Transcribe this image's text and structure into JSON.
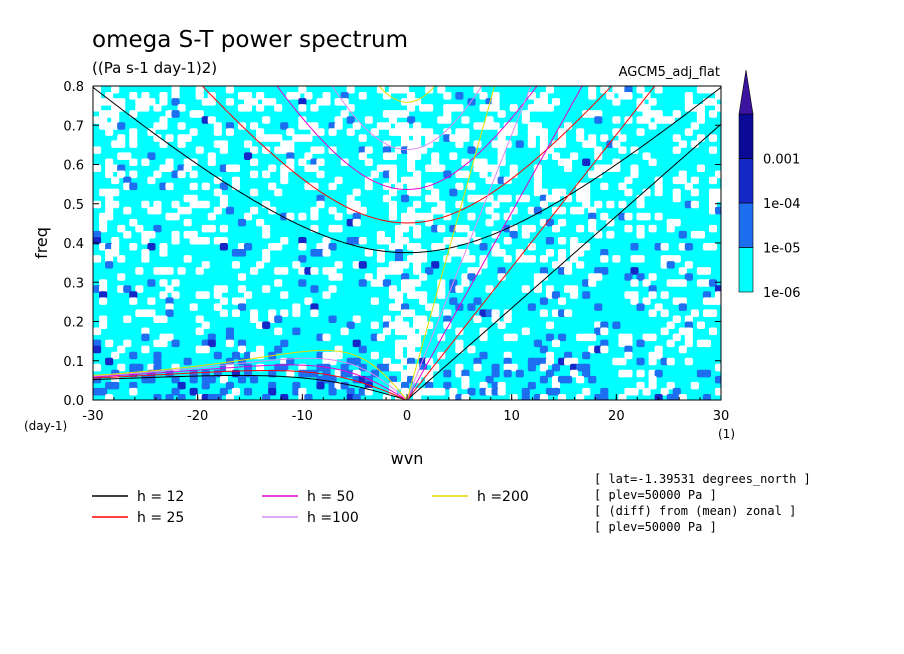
{
  "chart_data": {
    "type": "heatmap",
    "title": "omega S-T power spectrum",
    "subtitle": "((Pa s-1 day-1)2)",
    "run_label": "AGCM5_adj_flat",
    "xlabel": "wvn",
    "ylabel": "freq",
    "x_unit": "(1)",
    "y_unit": "(day-1)",
    "xlim": [
      -30,
      30
    ],
    "ylim": [
      0,
      0.8
    ],
    "x_ticks": [
      "-30",
      "-20",
      "-10",
      "0",
      "10",
      "20",
      "30"
    ],
    "y_ticks": [
      "0.0",
      "0.1",
      "0.2",
      "0.3",
      "0.4",
      "0.5",
      "0.6",
      "0.7",
      "0.8"
    ],
    "colorbar": {
      "labels": [
        "1e-06",
        "1e-05",
        "1e-04",
        "0.001"
      ],
      "colors": [
        "#00ffff",
        "#1e6ef0",
        "#1428c8",
        "#0a0a96",
        "#3c14a0"
      ]
    },
    "dispersion_curves": [
      {
        "label": "h = 12",
        "h": 12,
        "color": "#000000"
      },
      {
        "label": "h = 25",
        "h": 25,
        "color": "#ff0000"
      },
      {
        "label": "h = 50",
        "h": 50,
        "color": "#e600d2"
      },
      {
        "label": "h =100",
        "h": 100,
        "color": "#dc8cf0"
      },
      {
        "label": "h =200",
        "h": 200,
        "color": "#e6dc00"
      }
    ],
    "annotations": [
      "[ lat=-1.39531 degrees_north ]",
      "[ plev=50000 Pa ]",
      "[ (diff) from (mean) zonal ]",
      "[ plev=50000 Pa ]"
    ]
  }
}
